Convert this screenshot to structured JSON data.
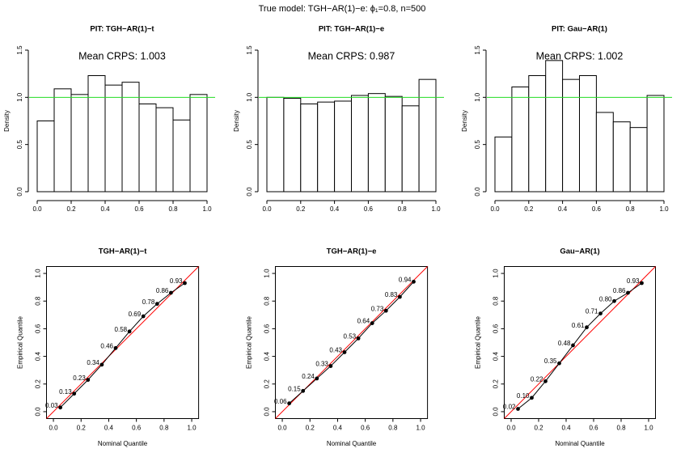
{
  "title": "True model: TGH−AR(1)−e: ϕ₁=0.8, n=500",
  "chart_data": [
    {
      "type": "histogram",
      "title": "PIT: TGH−AR(1)−t",
      "annotation": "Mean CRPS: 1.003",
      "y_label": "Density",
      "bins": [
        0,
        0.1,
        0.2,
        0.3,
        0.4,
        0.5,
        0.6,
        0.7,
        0.8,
        0.9,
        1.0
      ],
      "values": [
        0.75,
        1.09,
        1.03,
        1.23,
        1.13,
        1.16,
        0.93,
        0.89,
        0.76,
        1.03
      ],
      "color": "#ffffff",
      "edge_color": "#000000",
      "reference_line": {
        "y": 1,
        "color": "#22dd22"
      },
      "xlim": [
        0,
        1
      ],
      "ylim": [
        0,
        1.5
      ],
      "xticks": [
        {
          "value": 0,
          "label": "0.0"
        },
        0.2,
        0.4,
        0.6,
        0.8,
        {
          "value": 1,
          "label": "1.0"
        }
      ],
      "yticks": [
        {
          "value": 0,
          "label": "0.0"
        },
        0.5,
        {
          "value": 1,
          "label": "1.0"
        },
        1.5
      ]
    },
    {
      "type": "histogram",
      "title": "PIT: TGH−AR(1)−e",
      "annotation": "Mean CRPS: 0.987",
      "y_label": "Density",
      "bins": [
        0,
        0.1,
        0.2,
        0.3,
        0.4,
        0.5,
        0.6,
        0.7,
        0.8,
        0.9,
        1.0
      ],
      "values": [
        1.0,
        0.99,
        0.93,
        0.95,
        0.96,
        1.02,
        1.04,
        1.01,
        0.91,
        1.19
      ],
      "color": "#ffffff",
      "edge_color": "#000000",
      "reference_line": {
        "y": 1,
        "color": "#22dd22"
      },
      "xlim": [
        0,
        1
      ],
      "ylim": [
        0,
        1.5
      ],
      "xticks": [
        {
          "value": 0,
          "label": "0.0"
        },
        0.2,
        0.4,
        0.6,
        0.8,
        {
          "value": 1,
          "label": "1.0"
        }
      ],
      "yticks": [
        {
          "value": 0,
          "label": "0.0"
        },
        0.5,
        {
          "value": 1,
          "label": "1.0"
        },
        1.5
      ]
    },
    {
      "type": "histogram",
      "title": "PIT: Gau−AR(1)",
      "annotation": "Mean CRPS: 1.002",
      "y_label": "Density",
      "bins": [
        0,
        0.1,
        0.2,
        0.3,
        0.4,
        0.5,
        0.6,
        0.7,
        0.8,
        0.9,
        1.0
      ],
      "values": [
        0.58,
        1.11,
        1.23,
        1.39,
        1.19,
        1.23,
        0.84,
        0.74,
        0.68,
        1.02
      ],
      "color": "#ffffff",
      "edge_color": "#000000",
      "reference_line": {
        "y": 1,
        "color": "#22dd22"
      },
      "xlim": [
        0,
        1
      ],
      "ylim": [
        0,
        1.5
      ],
      "xticks": [
        {
          "value": 0,
          "label": "0.0"
        },
        0.2,
        0.4,
        0.6,
        0.8,
        {
          "value": 1,
          "label": "1.0"
        }
      ],
      "yticks": [
        {
          "value": 0,
          "label": "0.0"
        },
        0.5,
        {
          "value": 1,
          "label": "1.0"
        },
        1.5
      ]
    },
    {
      "type": "scatter",
      "title": "TGH−AR(1)−t",
      "x_label": "Nominal Quantile",
      "y_label": "Empirical Quantile",
      "x": [
        0.05,
        0.15,
        0.25,
        0.35,
        0.45,
        0.55,
        0.65,
        0.75,
        0.85,
        0.95
      ],
      "values": [
        0.03,
        0.13,
        0.23,
        0.34,
        0.46,
        0.58,
        0.69,
        0.78,
        0.86,
        0.93
      ],
      "value_labels": [
        "0.03",
        "0.13",
        "0.23",
        "0.34",
        "0.46",
        "0.58",
        "0.69",
        "0.78",
        "0.86",
        "0.93"
      ],
      "color": "#000000",
      "diagonal_color": "#ff0000",
      "xlim": [
        -0.05,
        1.05
      ],
      "ylim": [
        -0.05,
        1.05
      ],
      "xticks": [
        {
          "value": 0,
          "label": "0.0"
        },
        0.2,
        0.4,
        0.6,
        0.8,
        {
          "value": 1,
          "label": "1.0"
        }
      ],
      "yticks": [
        {
          "value": 0,
          "label": "0.0"
        },
        0.2,
        0.4,
        0.6,
        0.8,
        {
          "value": 1,
          "label": "1.0"
        }
      ]
    },
    {
      "type": "scatter",
      "title": "TGH−AR(1)−e",
      "x_label": "Nominal Quantile",
      "y_label": "Empirical Quantile",
      "x": [
        0.05,
        0.15,
        0.25,
        0.35,
        0.45,
        0.55,
        0.65,
        0.75,
        0.85,
        0.95
      ],
      "values": [
        0.06,
        0.15,
        0.24,
        0.33,
        0.43,
        0.53,
        0.64,
        0.73,
        0.83,
        0.94
      ],
      "value_labels": [
        "0.06",
        "0.15",
        "0.24",
        "0.33",
        "0.43",
        "0.53",
        "0.64",
        "0.73",
        "0.83",
        "0.94"
      ],
      "color": "#000000",
      "diagonal_color": "#ff0000",
      "xlim": [
        -0.05,
        1.05
      ],
      "ylim": [
        -0.05,
        1.05
      ],
      "xticks": [
        {
          "value": 0,
          "label": "0.0"
        },
        0.2,
        0.4,
        0.6,
        0.8,
        {
          "value": 1,
          "label": "1.0"
        }
      ],
      "yticks": [
        {
          "value": 0,
          "label": "0.0"
        },
        0.2,
        0.4,
        0.6,
        0.8,
        {
          "value": 1,
          "label": "1.0"
        }
      ]
    },
    {
      "type": "scatter",
      "title": "Gau−AR(1)",
      "x_label": "Nominal Quantile",
      "y_label": "Empirical Quantile",
      "x": [
        0.05,
        0.15,
        0.25,
        0.35,
        0.45,
        0.55,
        0.65,
        0.75,
        0.85,
        0.95
      ],
      "values": [
        0.02,
        0.1,
        0.22,
        0.35,
        0.48,
        0.61,
        0.71,
        0.8,
        0.86,
        0.93
      ],
      "value_labels": [
        "0.02",
        "0.10",
        "0.22",
        "0.35",
        "0.48",
        "0.61",
        "0.71",
        "0.80",
        "0.86",
        "0.93"
      ],
      "color": "#000000",
      "diagonal_color": "#ff0000",
      "xlim": [
        -0.05,
        1.05
      ],
      "ylim": [
        -0.05,
        1.05
      ],
      "xticks": [
        {
          "value": 0,
          "label": "0.0"
        },
        0.2,
        0.4,
        0.6,
        0.8,
        {
          "value": 1,
          "label": "1.0"
        }
      ],
      "yticks": [
        {
          "value": 0,
          "label": "0.0"
        },
        0.2,
        0.4,
        0.6,
        0.8,
        {
          "value": 1,
          "label": "1.0"
        }
      ]
    }
  ]
}
